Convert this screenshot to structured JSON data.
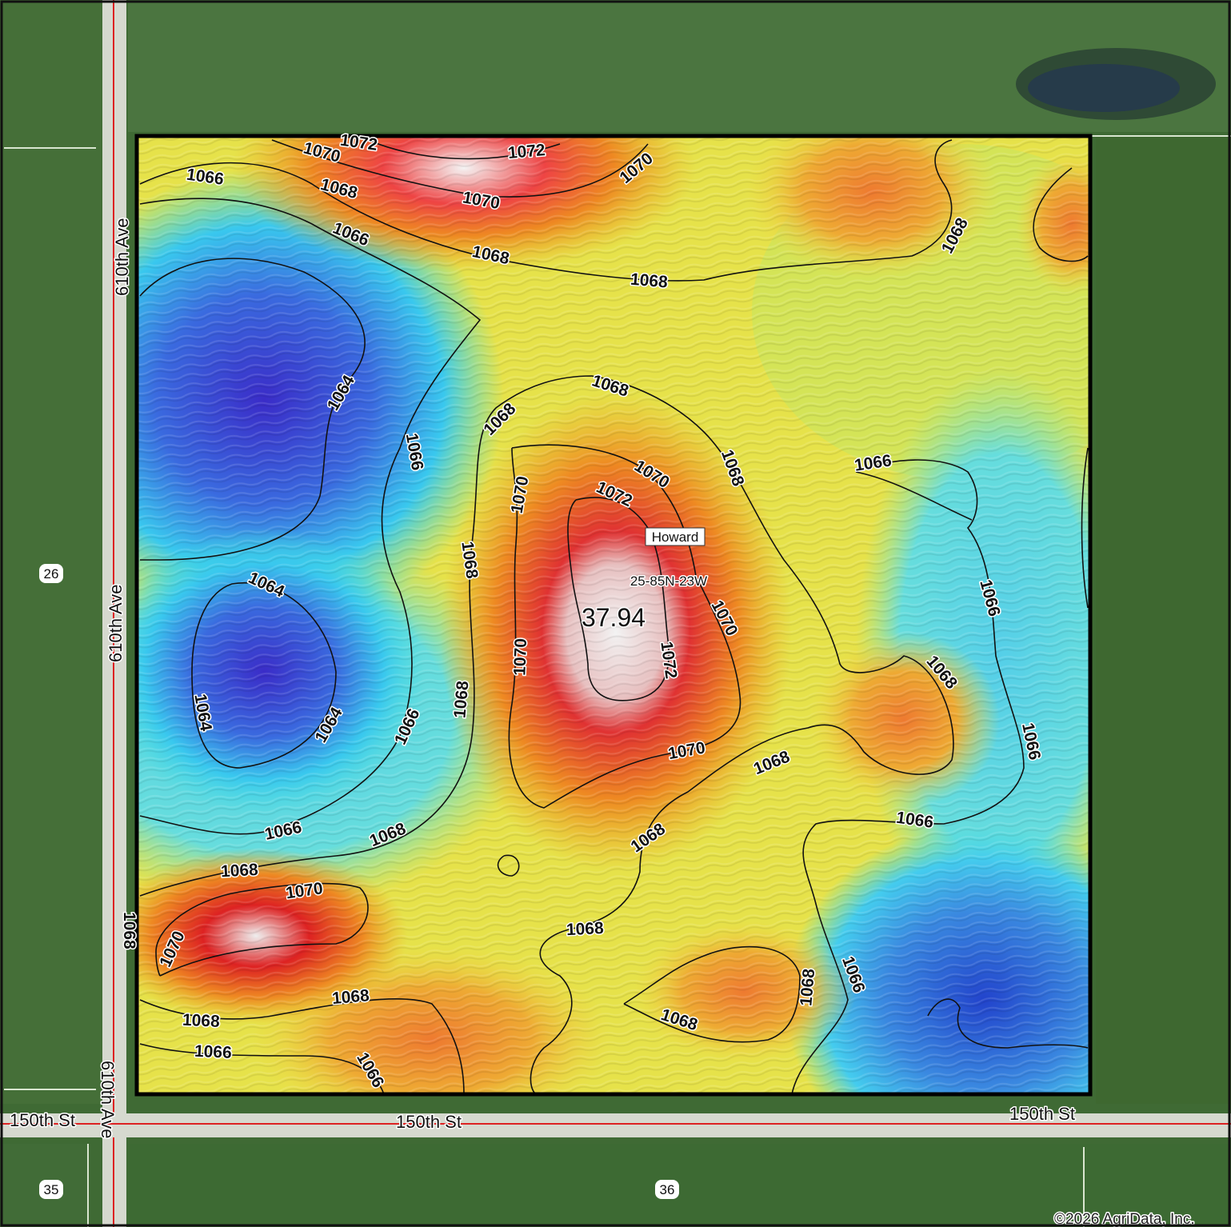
{
  "map": {
    "field_name": "Howard",
    "legal_description": "25-85N-23W",
    "acres": "37.94",
    "copyright": "©2026 AgriData, Inc.",
    "roads": {
      "ave_north": "610th Ave",
      "ave_middle": "610th Ave",
      "ave_south": "610th Ave",
      "st_west": "150th St",
      "st_middle": "150th St",
      "st_east": "150th St"
    },
    "sections": {
      "s26": "26",
      "s35": "35",
      "s36": "36"
    },
    "contour_labels": {
      "c1072a": "1072",
      "c1072b": "1072",
      "c1070a": "1070",
      "c1070b": "1070",
      "c1070c": "1070",
      "c1066a": "1066",
      "c1068a": "1068",
      "c1066b": "1066",
      "c1068b": "1068",
      "c1068c": "1068",
      "c1068d": "1068",
      "c1064a": "1064",
      "c1066c": "1066",
      "c1068e": "1068",
      "c1068f": "1068",
      "c1070d": "1070",
      "c1068g": "1068",
      "c1070e": "1070",
      "c1072c": "1072",
      "c1070f": "1070",
      "c1072d": "1072",
      "c1068h": "1068",
      "c1066d": "1066",
      "c1066e": "1066",
      "c1064b": "1064",
      "c1064c": "1064",
      "c1064d": "1064",
      "c1066f": "1066",
      "c1068i": "1068",
      "c1070g": "1070",
      "c1070h": "1070",
      "c1068j": "1068",
      "c1068k": "1068",
      "c1066g": "1066",
      "c1066h": "1066",
      "c1066i": "1066",
      "c1068l": "1068",
      "c1068m": "1068",
      "c1068n": "1068",
      "c1070i": "1070",
      "c1070j": "1070",
      "c1068o": "1068",
      "c1068p": "1068",
      "c1068q": "1068",
      "c1068r": "1068",
      "c1066j": "1066",
      "c1066k": "1066",
      "c1068s": "1068",
      "c1066l": "1066",
      "c1068t": "1068"
    },
    "colors": {
      "low": "#2233cc",
      "mid_low": "#33ddee",
      "mid": "#eeee44",
      "mid_high": "#ee9922",
      "high": "#dd2222",
      "peak": "#f4f4f4",
      "road_line": "#dd2222"
    }
  }
}
